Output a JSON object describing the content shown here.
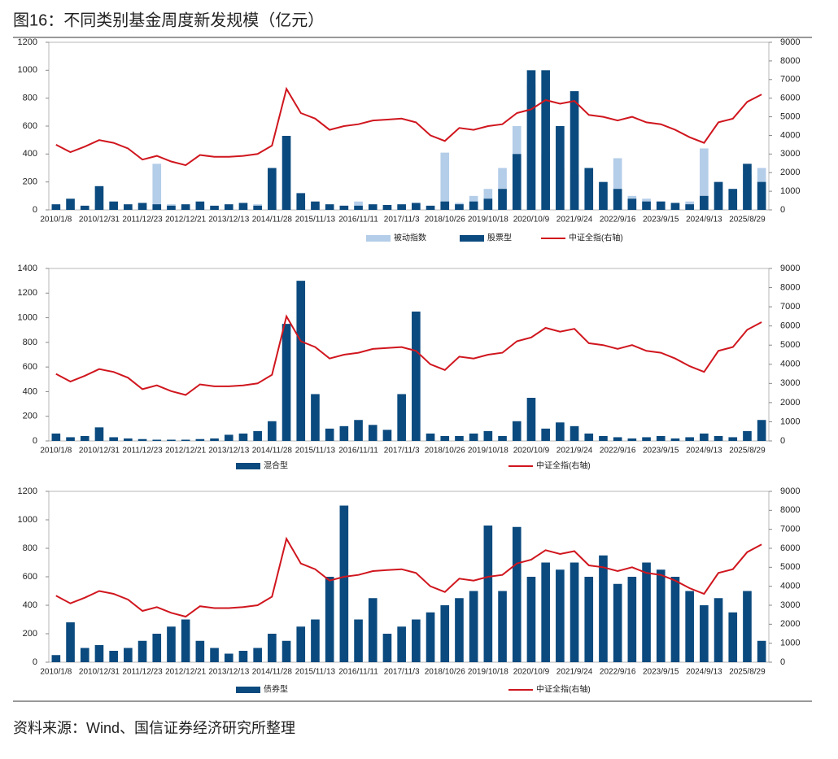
{
  "title": "图16：不同类别基金周度新发规模（亿元）",
  "source": "资料来源：Wind、国信证券经济研究所整理",
  "chart_data": [
    {
      "type": "bar-line",
      "categories": [
        "2010/1/8",
        null,
        null,
        "2010/12/31",
        null,
        null,
        "2011/12/23",
        null,
        null,
        "2012/12/21",
        null,
        null,
        "2013/12/13",
        null,
        null,
        "2014/11/28",
        null,
        null,
        "2015/11/13",
        null,
        null,
        "2016/11/11",
        null,
        null,
        "2017/11/3",
        null,
        null,
        "2018/10/26",
        null,
        null,
        "2019/10/18",
        null,
        null,
        "2020/10/9",
        null,
        null,
        "2021/9/24",
        null,
        null,
        "2022/9/16",
        null,
        null,
        "2023/9/15",
        null,
        null,
        "2024/9/13",
        null,
        null,
        "2025/8/29",
        null
      ],
      "ylim": [
        0,
        1200
      ],
      "yticks": [
        0,
        200,
        400,
        600,
        800,
        1000,
        1200
      ],
      "y2lim": [
        0,
        9000
      ],
      "y2ticks": [
        0,
        1000,
        2000,
        3000,
        4000,
        5000,
        6000,
        7000,
        8000,
        9000
      ],
      "series": [
        {
          "name": "被动指数",
          "color": "#b4cde8",
          "values": [
            20,
            10,
            15,
            30,
            20,
            15,
            25,
            330,
            40,
            20,
            30,
            15,
            20,
            15,
            40,
            30,
            80,
            60,
            40,
            20,
            30,
            60,
            25,
            20,
            30,
            40,
            25,
            410,
            50,
            100,
            150,
            300,
            600,
            900,
            400,
            300,
            250,
            200,
            150,
            370,
            100,
            80,
            60,
            50,
            60,
            440,
            200,
            150,
            250,
            300
          ]
        },
        {
          "name": "股票型",
          "color": "#0b4a7e",
          "values": [
            40,
            80,
            30,
            170,
            60,
            40,
            50,
            40,
            30,
            40,
            60,
            30,
            40,
            50,
            30,
            300,
            530,
            120,
            60,
            40,
            30,
            30,
            40,
            35,
            40,
            50,
            30,
            60,
            40,
            60,
            80,
            150,
            400,
            1000,
            1000,
            600,
            850,
            300,
            200,
            150,
            80,
            60,
            60,
            50,
            40,
            100,
            200,
            150,
            330,
            200
          ]
        },
        {
          "name": "中证全指(右轴)",
          "color": "#d0161e",
          "axis": "y2",
          "values": [
            3500,
            3100,
            3400,
            3750,
            3600,
            3300,
            2700,
            2900,
            2600,
            2400,
            2950,
            2850,
            2850,
            2900,
            3000,
            3450,
            6500,
            5200,
            4900,
            4300,
            4500,
            4600,
            4800,
            4850,
            4900,
            4700,
            4000,
            3700,
            4400,
            4300,
            4500,
            4600,
            5200,
            5400,
            5900,
            5700,
            5850,
            5100,
            5000,
            4800,
            5000,
            4700,
            4600,
            4300,
            3900,
            3600,
            4700,
            4900,
            5800,
            6200
          ]
        }
      ]
    },
    {
      "type": "bar-line",
      "categories": [
        "2010/1/8",
        null,
        null,
        "2010/12/31",
        null,
        null,
        "2011/12/23",
        null,
        null,
        "2012/12/21",
        null,
        null,
        "2013/12/13",
        null,
        null,
        "2014/11/28",
        null,
        null,
        "2015/11/13",
        null,
        null,
        "2016/11/11",
        null,
        null,
        "2017/11/3",
        null,
        null,
        "2018/10/26",
        null,
        null,
        "2019/10/18",
        null,
        null,
        "2020/10/9",
        null,
        null,
        "2021/9/24",
        null,
        null,
        "2022/9/16",
        null,
        null,
        "2023/9/15",
        null,
        null,
        "2024/9/13",
        null,
        null,
        "2025/8/29",
        null
      ],
      "ylim": [
        0,
        1400
      ],
      "yticks": [
        0,
        200,
        400,
        600,
        800,
        1000,
        1200,
        1400
      ],
      "y2lim": [
        0,
        9000
      ],
      "y2ticks": [
        0,
        1000,
        2000,
        3000,
        4000,
        5000,
        6000,
        7000,
        8000,
        9000
      ],
      "series": [
        {
          "name": "混合型",
          "color": "#0b4a7e",
          "values": [
            60,
            30,
            40,
            110,
            30,
            20,
            15,
            10,
            10,
            10,
            15,
            20,
            50,
            60,
            80,
            160,
            950,
            1300,
            380,
            100,
            120,
            170,
            130,
            90,
            380,
            1050,
            60,
            40,
            40,
            60,
            80,
            40,
            160,
            350,
            100,
            150,
            120,
            60,
            40,
            30,
            20,
            30,
            40,
            20,
            30,
            60,
            40,
            30,
            80,
            170
          ]
        },
        {
          "name": "中证全指(右轴)",
          "color": "#d0161e",
          "axis": "y2",
          "values": [
            3500,
            3100,
            3400,
            3750,
            3600,
            3300,
            2700,
            2900,
            2600,
            2400,
            2950,
            2850,
            2850,
            2900,
            3000,
            3450,
            6500,
            5200,
            4900,
            4300,
            4500,
            4600,
            4800,
            4850,
            4900,
            4700,
            4000,
            3700,
            4400,
            4300,
            4500,
            4600,
            5200,
            5400,
            5900,
            5700,
            5850,
            5100,
            5000,
            4800,
            5000,
            4700,
            4600,
            4300,
            3900,
            3600,
            4700,
            4900,
            5800,
            6200
          ]
        }
      ]
    },
    {
      "type": "bar-line",
      "categories": [
        "2010/1/8",
        null,
        null,
        "2010/12/31",
        null,
        null,
        "2011/12/23",
        null,
        null,
        "2012/12/21",
        null,
        null,
        "2013/12/13",
        null,
        null,
        "2014/11/28",
        null,
        null,
        "2015/11/13",
        null,
        null,
        "2016/11/11",
        null,
        null,
        "2017/11/3",
        null,
        null,
        "2018/10/26",
        null,
        null,
        "2019/10/18",
        null,
        null,
        "2020/10/9",
        null,
        null,
        "2021/9/24",
        null,
        null,
        "2022/9/16",
        null,
        null,
        "2023/9/15",
        null,
        null,
        "2024/9/13",
        null,
        null,
        "2025/8/29",
        null
      ],
      "ylim": [
        0,
        1200
      ],
      "yticks": [
        0,
        200,
        400,
        600,
        800,
        1000,
        1200
      ],
      "y2lim": [
        0,
        9000
      ],
      "y2ticks": [
        0,
        1000,
        2000,
        3000,
        4000,
        5000,
        6000,
        7000,
        8000,
        9000
      ],
      "series": [
        {
          "name": "债券型",
          "color": "#0b4a7e",
          "values": [
            50,
            280,
            100,
            120,
            80,
            100,
            150,
            200,
            250,
            300,
            150,
            100,
            60,
            80,
            100,
            200,
            150,
            250,
            300,
            600,
            1100,
            300,
            450,
            200,
            250,
            300,
            350,
            400,
            450,
            500,
            960,
            500,
            950,
            600,
            700,
            650,
            700,
            600,
            750,
            550,
            600,
            700,
            650,
            600,
            500,
            400,
            450,
            350,
            500,
            150
          ]
        },
        {
          "name": "中证全指(右轴)",
          "color": "#d0161e",
          "axis": "y2",
          "values": [
            3500,
            3100,
            3400,
            3750,
            3600,
            3300,
            2700,
            2900,
            2600,
            2400,
            2950,
            2850,
            2850,
            2900,
            3000,
            3450,
            6500,
            5200,
            4900,
            4300,
            4500,
            4600,
            4800,
            4850,
            4900,
            4700,
            4000,
            3700,
            4400,
            4300,
            4500,
            4600,
            5200,
            5400,
            5900,
            5700,
            5850,
            5100,
            5000,
            4800,
            5000,
            4700,
            4600,
            4300,
            3900,
            3600,
            4700,
            4900,
            5800,
            6200
          ]
        }
      ]
    }
  ]
}
